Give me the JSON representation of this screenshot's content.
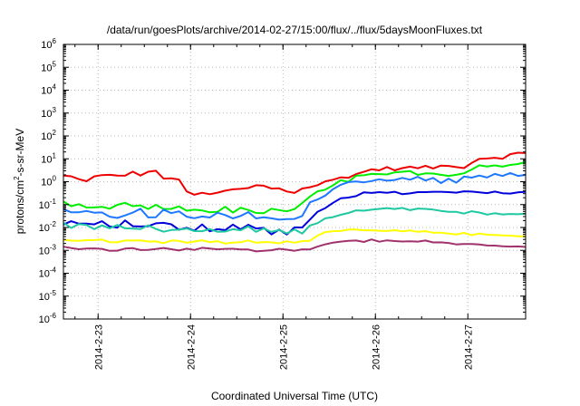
{
  "chart_data": {
    "type": "line",
    "title": "/data/run/goesPlots/archive/2014-02-27/15:00/flux/../flux/5daysMoonFluxes.txt",
    "xlabel": "Coordinated Universal Time (UTC)",
    "ylabel": "protons/cm2-s-sr-MeV",
    "ylabel_parts": {
      "before": "protons/cm",
      "sup": "2",
      "after": "-s-sr-MeV"
    },
    "yscale": "log",
    "ylim": [
      1e-06,
      1000000.0
    ],
    "y_ticks": [
      {
        "value": 1e-06,
        "exp": "-6"
      },
      {
        "value": 1e-05,
        "exp": "-5"
      },
      {
        "value": 0.0001,
        "exp": "-4"
      },
      {
        "value": 0.001,
        "exp": "-3"
      },
      {
        "value": 0.01,
        "exp": "-2"
      },
      {
        "value": 0.1,
        "exp": "-1"
      },
      {
        "value": 1,
        "exp": "0"
      },
      {
        "value": 10,
        "exp": "1"
      },
      {
        "value": 100,
        "exp": "2"
      },
      {
        "value": 1000,
        "exp": "3"
      },
      {
        "value": 10000,
        "exp": "4"
      },
      {
        "value": 100000,
        "exp": "5"
      },
      {
        "value": 1000000,
        "exp": "6"
      }
    ],
    "y_tick_base": "10",
    "xlim": [
      "2014-02-22 15:00",
      "2014-02-27 15:00"
    ],
    "x_ticks": [
      "2014-2-23",
      "2014-2-24",
      "2014-2-25",
      "2014-2-26",
      "2014-2-27"
    ],
    "grid": true,
    "legend": "none",
    "series": [
      {
        "color": "#ee0000",
        "noise": 0.11,
        "noise2": 0.09,
        "points": [
          [
            "2014-02-22 15:00",
            1.8
          ],
          [
            "2014-02-22 20:00",
            1.0
          ],
          [
            "2014-02-23 01:00",
            1.8
          ],
          [
            "2014-02-23 08:00",
            2.0
          ],
          [
            "2014-02-23 13:00",
            2.5
          ],
          [
            "2014-02-23 15:00",
            3.5
          ],
          [
            "2014-02-23 17:00",
            1.0
          ],
          [
            "2014-02-23 20:00",
            1.8
          ],
          [
            "2014-02-24 00:00",
            0.3
          ],
          [
            "2014-02-24 04:00",
            0.25
          ],
          [
            "2014-02-24 12:00",
            0.45
          ],
          [
            "2014-02-24 18:00",
            0.7
          ],
          [
            "2014-02-24 22:00",
            0.5
          ],
          [
            "2014-02-25 03:00",
            0.4
          ],
          [
            "2014-02-25 06:00",
            0.6
          ],
          [
            "2014-02-25 12:00",
            1.0
          ],
          [
            "2014-02-25 18:00",
            2.0
          ],
          [
            "2014-02-26 00:00",
            3.5
          ],
          [
            "2014-02-26 12:00",
            4.0
          ],
          [
            "2014-02-27 00:00",
            5.0
          ],
          [
            "2014-02-27 03:00",
            10
          ],
          [
            "2014-02-27 15:00",
            16
          ]
        ]
      },
      {
        "color": "#00ee00",
        "noise": 0.16,
        "noise2": 0.12,
        "points": [
          [
            "2014-02-22 15:00",
            0.1
          ],
          [
            "2014-02-23 12:00",
            0.08
          ],
          [
            "2014-02-24 00:00",
            0.05
          ],
          [
            "2014-02-24 18:00",
            0.05
          ],
          [
            "2014-02-25 00:00",
            0.05
          ],
          [
            "2014-02-25 03:00",
            0.05
          ],
          [
            "2014-02-25 07:00",
            0.2
          ],
          [
            "2014-02-25 12:00",
            0.6
          ],
          [
            "2014-02-25 18:00",
            1.3
          ],
          [
            "2014-02-26 00:00",
            2.0
          ],
          [
            "2014-02-26 12:00",
            2.5
          ],
          [
            "2014-02-26 20:00",
            1.5
          ],
          [
            "2014-02-27 03:00",
            4.0
          ],
          [
            "2014-02-27 15:00",
            7.0
          ]
        ]
      },
      {
        "color": "#1e78ff",
        "noise": 0.2,
        "noise2": 0.1,
        "points": [
          [
            "2014-02-22 15:00",
            0.05
          ],
          [
            "2014-02-23 12:00",
            0.04
          ],
          [
            "2014-02-24 00:00",
            0.03
          ],
          [
            "2014-02-24 18:00",
            0.03
          ],
          [
            "2014-02-25 00:00",
            0.03
          ],
          [
            "2014-02-25 04:00",
            0.03
          ],
          [
            "2014-02-25 08:00",
            0.15
          ],
          [
            "2014-02-25 12:00",
            0.4
          ],
          [
            "2014-02-25 18:00",
            0.9
          ],
          [
            "2014-02-26 00:00",
            1.2
          ],
          [
            "2014-02-26 12:00",
            1.5
          ],
          [
            "2014-02-26 20:00",
            1.0
          ],
          [
            "2014-02-27 03:00",
            1.8
          ],
          [
            "2014-02-27 15:00",
            2.2
          ]
        ]
      },
      {
        "color": "#0000dd",
        "noise": 0.2,
        "noise2": 0.06,
        "points": [
          [
            "2014-02-22 15:00",
            0.012
          ],
          [
            "2014-02-23 12:00",
            0.012
          ],
          [
            "2014-02-24 00:00",
            0.01
          ],
          [
            "2014-02-24 18:00",
            0.01
          ],
          [
            "2014-02-25 00:00",
            0.008
          ],
          [
            "2014-02-25 05:00",
            0.008
          ],
          [
            "2014-02-25 09:00",
            0.05
          ],
          [
            "2014-02-25 14:00",
            0.15
          ],
          [
            "2014-02-25 20:00",
            0.28
          ],
          [
            "2014-02-26 02:00",
            0.33
          ],
          [
            "2014-02-26 12:00",
            0.33
          ],
          [
            "2014-02-27 00:00",
            0.33
          ],
          [
            "2014-02-27 15:00",
            0.35
          ]
        ]
      },
      {
        "color": "#1ec8a0",
        "noise": 0.14,
        "noise2": 0.05,
        "points": [
          [
            "2014-02-22 15:00",
            0.012
          ],
          [
            "2014-02-23 12:00",
            0.01
          ],
          [
            "2014-02-24 00:00",
            0.008
          ],
          [
            "2014-02-24 18:00",
            0.008
          ],
          [
            "2014-02-25 00:00",
            0.007
          ],
          [
            "2014-02-25 05:00",
            0.007
          ],
          [
            "2014-02-25 10:00",
            0.02
          ],
          [
            "2014-02-25 18:00",
            0.05
          ],
          [
            "2014-02-26 02:00",
            0.07
          ],
          [
            "2014-02-26 12:00",
            0.06
          ],
          [
            "2014-02-27 00:00",
            0.045
          ],
          [
            "2014-02-27 15:00",
            0.035
          ]
        ]
      },
      {
        "color": "#ffff00",
        "noise": 0.07,
        "noise2": 0.04,
        "points": [
          [
            "2014-02-22 15:00",
            0.0026
          ],
          [
            "2014-02-23 12:00",
            0.0025
          ],
          [
            "2014-02-24 00:00",
            0.0024
          ],
          [
            "2014-02-24 18:00",
            0.0024
          ],
          [
            "2014-02-25 00:00",
            0.0023
          ],
          [
            "2014-02-25 06:00",
            0.0023
          ],
          [
            "2014-02-25 10:00",
            0.006
          ],
          [
            "2014-02-25 16:00",
            0.008
          ],
          [
            "2014-02-26 00:00",
            0.0075
          ],
          [
            "2014-02-26 12:00",
            0.0065
          ],
          [
            "2014-02-27 00:00",
            0.005
          ],
          [
            "2014-02-27 15:00",
            0.0045
          ]
        ]
      },
      {
        "color": "#a0326e",
        "noise": 0.06,
        "noise2": 0.05,
        "points": [
          [
            "2014-02-22 15:00",
            0.0012
          ],
          [
            "2014-02-23 12:00",
            0.0011
          ],
          [
            "2014-02-24 00:00",
            0.0011
          ],
          [
            "2014-02-24 18:00",
            0.0011
          ],
          [
            "2014-02-25 00:00",
            0.0011
          ],
          [
            "2014-02-25 06:00",
            0.0011
          ],
          [
            "2014-02-25 10:00",
            0.0018
          ],
          [
            "2014-02-25 18:00",
            0.0025
          ],
          [
            "2014-02-26 02:00",
            0.0027
          ],
          [
            "2014-02-26 12:00",
            0.0024
          ],
          [
            "2014-02-27 00:00",
            0.0018
          ],
          [
            "2014-02-27 15:00",
            0.0015
          ]
        ]
      }
    ]
  }
}
